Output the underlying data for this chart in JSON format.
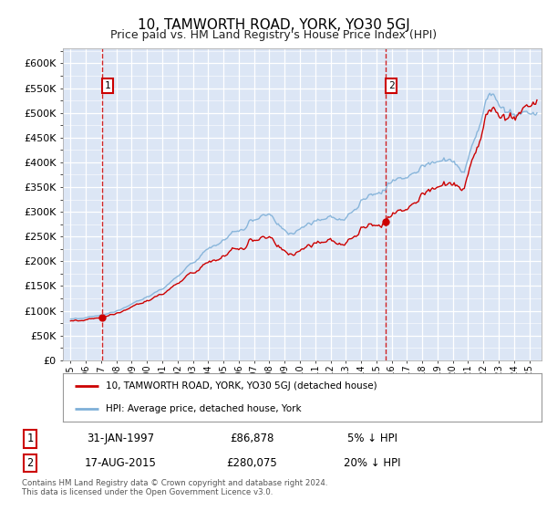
{
  "title": "10, TAMWORTH ROAD, YORK, YO30 5GJ",
  "subtitle": "Price paid vs. HM Land Registry's House Price Index (HPI)",
  "title_fontsize": 11,
  "subtitle_fontsize": 9,
  "ylim": [
    0,
    630000
  ],
  "yticks": [
    0,
    50000,
    100000,
    150000,
    200000,
    250000,
    300000,
    350000,
    400000,
    450000,
    500000,
    550000,
    600000
  ],
  "ytick_labels": [
    "£0",
    "£50K",
    "£100K",
    "£150K",
    "£200K",
    "£250K",
    "£300K",
    "£350K",
    "£400K",
    "£450K",
    "£500K",
    "£550K",
    "£600K"
  ],
  "plot_bg_color": "#dce6f5",
  "fig_bg_color": "#ffffff",
  "red_color": "#cc0000",
  "blue_color": "#7fb0d8",
  "sale1_year": 1997.08,
  "sale1_price": 86878,
  "sale2_year": 2015.63,
  "sale2_price": 280075,
  "legend_line1": "10, TAMWORTH ROAD, YORK, YO30 5GJ (detached house)",
  "legend_line2": "HPI: Average price, detached house, York",
  "sale1_date": "31-JAN-1997",
  "sale1_amount": "£86,878",
  "sale1_hpi": "5% ↓ HPI",
  "sale2_date": "17-AUG-2015",
  "sale2_amount": "£280,075",
  "sale2_hpi": "20% ↓ HPI",
  "footer": "Contains HM Land Registry data © Crown copyright and database right 2024.\nThis data is licensed under the Open Government Licence v3.0.",
  "xmin": 1994.5,
  "xmax": 2025.8
}
